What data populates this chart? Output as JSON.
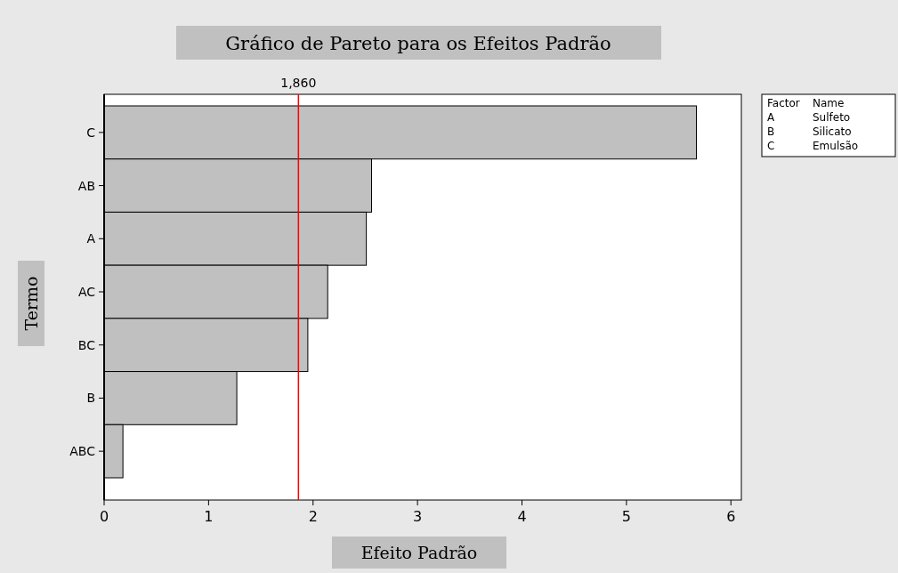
{
  "chart_data": {
    "type": "bar",
    "orientation": "horizontal",
    "title": "Gráfico de Pareto para os Efeitos Padrão",
    "xlabel": "Efeito Padrão",
    "ylabel": "Termo",
    "categories": [
      "C",
      "AB",
      "A",
      "AC",
      "BC",
      "B",
      "ABC"
    ],
    "values": [
      5.67,
      2.56,
      2.51,
      2.14,
      1.95,
      1.27,
      0.18
    ],
    "color": "#c0c0c0",
    "xlim": [
      0,
      6.1
    ],
    "xticks": [
      0,
      1,
      2,
      3,
      4,
      5,
      6
    ],
    "ref_lines": [
      {
        "axis": "x",
        "value": 1.86,
        "label": "1,860",
        "color": "#ff0000"
      }
    ],
    "annotations": [
      "Factor",
      "Name",
      "A",
      "Sulfeto",
      "B",
      "Silicato",
      "C",
      "Emulsão"
    ],
    "grid": false
  }
}
